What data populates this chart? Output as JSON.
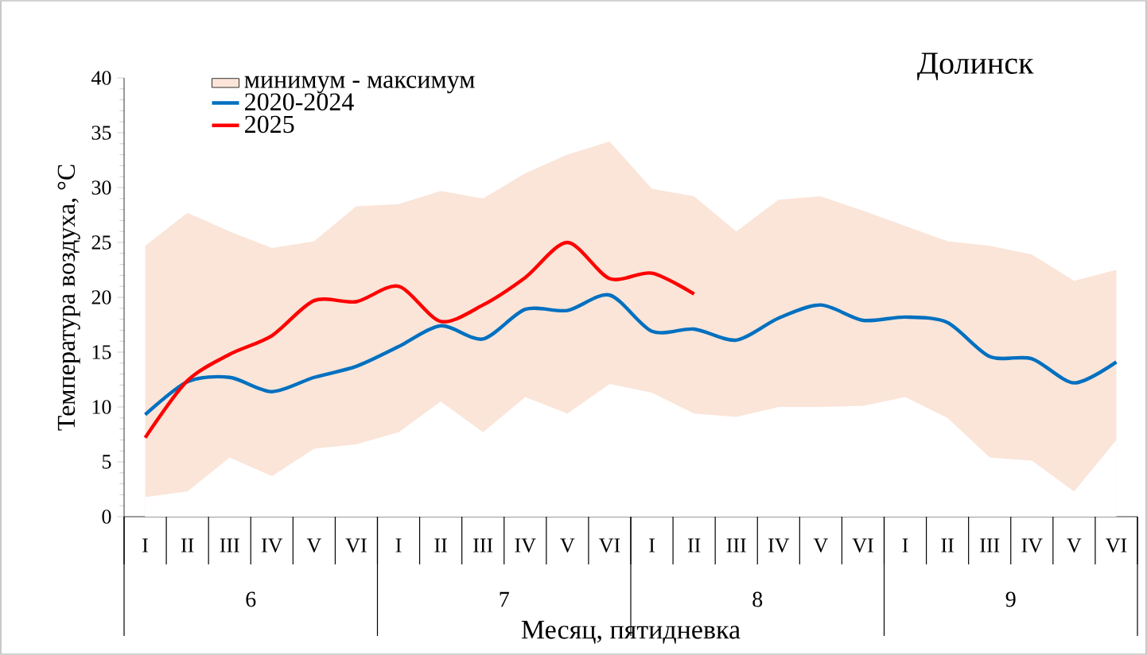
{
  "chart_data": {
    "type": "line",
    "title": "Долинск",
    "xlabel": "Месяц, пятидневка",
    "ylabel": "Температура воздуха, °C",
    "categories": [
      "I",
      "II",
      "III",
      "IV",
      "V",
      "VI",
      "I",
      "II",
      "III",
      "IV",
      "V",
      "VI",
      "I",
      "II",
      "III",
      "IV",
      "V",
      "VI",
      "I",
      "II",
      "III",
      "IV",
      "V",
      "VI"
    ],
    "annotations": [
      "6",
      "7",
      "8",
      "9"
    ],
    "ylim": [
      0,
      40
    ],
    "yticks": [
      0,
      5,
      10,
      15,
      20,
      25,
      30,
      35,
      40
    ],
    "legend": "top left",
    "grid": false,
    "marker": "none",
    "line_style": "solid",
    "series": [
      {
        "name": "минимум - максимум",
        "type": "area",
        "color": "#fae5d8",
        "values": [
          24.7,
          27.7,
          26,
          24.5,
          25.1,
          28.3,
          28.5,
          29.7,
          29,
          31.3,
          33,
          34.2,
          29.9,
          29.2,
          26,
          28.9,
          29.2,
          27.9,
          26.5,
          25.1,
          24.7,
          23.9,
          21.5,
          22.5
        ]
      },
      {
        "type": "area",
        "color": "#ffffff",
        "values": [
          1.8,
          2.3,
          5.4,
          3.7,
          6.2,
          6.6,
          7.7,
          10.5,
          7.7,
          10.9,
          9.4,
          12.1,
          11.3,
          9.4,
          9.1,
          10,
          10,
          10.1,
          10.9,
          9,
          5.4,
          5.1,
          2.3,
          7
        ]
      },
      {
        "name": "2020-2024",
        "color": "#0070c0",
        "values": [
          9.3,
          12.3,
          12.7,
          11.4,
          12.7,
          13.7,
          15.5,
          17.4,
          16.2,
          18.9,
          18.8,
          20.2,
          16.9,
          17.1,
          16.1,
          18.1,
          19.3,
          17.9,
          18.2,
          17.7,
          14.6,
          14.4,
          12.2,
          14.1
        ]
      },
      {
        "name": "2025",
        "color": "#ff0000",
        "values": [
          7.2,
          12.4,
          14.8,
          16.5,
          19.7,
          19.6,
          21,
          17.8,
          19.3,
          21.8,
          25,
          21.7,
          22.2,
          20.3,
          null,
          null,
          null,
          null,
          null,
          null,
          null,
          null,
          null,
          null
        ]
      }
    ]
  }
}
